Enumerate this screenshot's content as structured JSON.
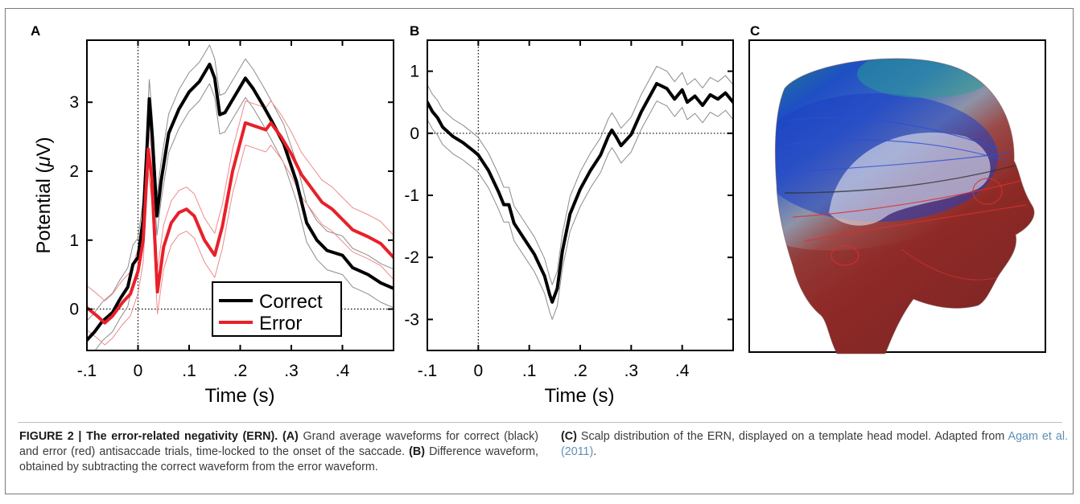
{
  "chart_data": [
    {
      "type": "line",
      "panel_label": "A",
      "xlabel": "Time (s)",
      "ylabel": "Potential (μV)",
      "xlim": [
        -0.1,
        0.5
      ],
      "ylim": [
        -0.6,
        3.9
      ],
      "xticks": [
        -0.1,
        0,
        0.1,
        0.2,
        0.3,
        0.4
      ],
      "xtick_labels": [
        "-.1",
        "0",
        ".1",
        ".2",
        ".3",
        ".4"
      ],
      "yticks": [
        0,
        1,
        2,
        3
      ],
      "ytick_labels": [
        "0",
        "1",
        "2",
        "3"
      ],
      "zero_lines": true,
      "legend": "bottom-center",
      "series": [
        {
          "name": "Correct",
          "color": "#000000",
          "band_color": "#8c8c8c",
          "band_width": 0.28,
          "points": [
            [
              -0.1,
              -0.45
            ],
            [
              -0.085,
              -0.33
            ],
            [
              -0.07,
              -0.18
            ],
            [
              -0.05,
              -0.05
            ],
            [
              -0.035,
              0.15
            ],
            [
              -0.02,
              0.32
            ],
            [
              -0.01,
              0.65
            ],
            [
              0.0,
              0.75
            ],
            [
              0.01,
              1.3
            ],
            [
              0.018,
              2.4
            ],
            [
              0.022,
              3.05
            ],
            [
              0.028,
              2.5
            ],
            [
              0.037,
              1.35
            ],
            [
              0.045,
              1.85
            ],
            [
              0.06,
              2.55
            ],
            [
              0.08,
              2.9
            ],
            [
              0.1,
              3.15
            ],
            [
              0.12,
              3.3
            ],
            [
              0.14,
              3.55
            ],
            [
              0.15,
              3.35
            ],
            [
              0.16,
              2.82
            ],
            [
              0.17,
              2.85
            ],
            [
              0.19,
              3.1
            ],
            [
              0.21,
              3.35
            ],
            [
              0.225,
              3.2
            ],
            [
              0.245,
              2.95
            ],
            [
              0.26,
              2.75
            ],
            [
              0.285,
              2.4
            ],
            [
              0.31,
              1.85
            ],
            [
              0.33,
              1.25
            ],
            [
              0.35,
              1.0
            ],
            [
              0.37,
              0.85
            ],
            [
              0.4,
              0.78
            ],
            [
              0.42,
              0.6
            ],
            [
              0.45,
              0.5
            ],
            [
              0.475,
              0.38
            ],
            [
              0.5,
              0.3
            ]
          ]
        },
        {
          "name": "Error",
          "color": "#e8202a",
          "band_color": "#ef8a8a",
          "band_width": 0.32,
          "points": [
            [
              -0.1,
              0.02
            ],
            [
              -0.08,
              -0.1
            ],
            [
              -0.065,
              -0.2
            ],
            [
              -0.05,
              -0.1
            ],
            [
              -0.03,
              0.1
            ],
            [
              -0.015,
              0.22
            ],
            [
              0.0,
              0.55
            ],
            [
              0.01,
              1.0
            ],
            [
              0.02,
              2.32
            ],
            [
              0.027,
              1.9
            ],
            [
              0.038,
              0.25
            ],
            [
              0.05,
              0.9
            ],
            [
              0.065,
              1.25
            ],
            [
              0.08,
              1.4
            ],
            [
              0.095,
              1.45
            ],
            [
              0.11,
              1.35
            ],
            [
              0.13,
              1.0
            ],
            [
              0.15,
              0.78
            ],
            [
              0.165,
              1.2
            ],
            [
              0.185,
              2.0
            ],
            [
              0.21,
              2.7
            ],
            [
              0.23,
              2.65
            ],
            [
              0.25,
              2.6
            ],
            [
              0.26,
              2.7
            ],
            [
              0.28,
              2.5
            ],
            [
              0.3,
              2.25
            ],
            [
              0.32,
              1.95
            ],
            [
              0.34,
              1.75
            ],
            [
              0.36,
              1.55
            ],
            [
              0.38,
              1.45
            ],
            [
              0.4,
              1.3
            ],
            [
              0.42,
              1.15
            ],
            [
              0.45,
              1.05
            ],
            [
              0.475,
              0.95
            ],
            [
              0.5,
              0.75
            ]
          ]
        }
      ]
    },
    {
      "type": "line",
      "panel_label": "B",
      "xlabel": "Time (s)",
      "ylabel": "",
      "xlim": [
        -0.1,
        0.5
      ],
      "ylim": [
        -3.5,
        1.5
      ],
      "xticks": [
        -0.1,
        0,
        0.1,
        0.2,
        0.3,
        0.4
      ],
      "xtick_labels": [
        "-.1",
        "0",
        ".1",
        ".2",
        ".3",
        ".4"
      ],
      "yticks": [
        -3,
        -2,
        -1,
        0,
        1
      ],
      "ytick_labels": [
        "-3",
        "-2",
        "-1",
        "0",
        "1"
      ],
      "zero_lines": true,
      "series": [
        {
          "color": "#000000",
          "band_color": "#8c8c8c",
          "band_width": 0.28,
          "points": [
            [
              -0.1,
              0.5
            ],
            [
              -0.09,
              0.35
            ],
            [
              -0.08,
              0.25
            ],
            [
              -0.07,
              0.1
            ],
            [
              -0.05,
              -0.05
            ],
            [
              -0.03,
              -0.15
            ],
            [
              -0.01,
              -0.28
            ],
            [
              0.0,
              -0.35
            ],
            [
              0.02,
              -0.6
            ],
            [
              0.04,
              -0.95
            ],
            [
              0.05,
              -1.15
            ],
            [
              0.06,
              -1.15
            ],
            [
              0.07,
              -1.45
            ],
            [
              0.09,
              -1.7
            ],
            [
              0.11,
              -1.95
            ],
            [
              0.13,
              -2.3
            ],
            [
              0.14,
              -2.6
            ],
            [
              0.145,
              -2.72
            ],
            [
              0.155,
              -2.5
            ],
            [
              0.165,
              -1.9
            ],
            [
              0.18,
              -1.3
            ],
            [
              0.2,
              -0.9
            ],
            [
              0.22,
              -0.6
            ],
            [
              0.24,
              -0.35
            ],
            [
              0.255,
              -0.05
            ],
            [
              0.262,
              0.05
            ],
            [
              0.27,
              -0.05
            ],
            [
              0.28,
              -0.2
            ],
            [
              0.3,
              -0.02
            ],
            [
              0.32,
              0.35
            ],
            [
              0.35,
              0.8
            ],
            [
              0.37,
              0.72
            ],
            [
              0.385,
              0.55
            ],
            [
              0.4,
              0.7
            ],
            [
              0.41,
              0.5
            ],
            [
              0.425,
              0.6
            ],
            [
              0.44,
              0.45
            ],
            [
              0.455,
              0.62
            ],
            [
              0.47,
              0.55
            ],
            [
              0.485,
              0.65
            ],
            [
              0.5,
              0.5
            ]
          ]
        }
      ]
    }
  ],
  "panels": {
    "a_label": "A",
    "b_label": "B",
    "c_label": "C"
  },
  "legend": {
    "correct": "Correct",
    "error": "Error"
  },
  "caption": {
    "label": "FIGURE 2 | The error-related negativity (ERN).",
    "a": "(A)",
    "a_text": "Grand average waveforms for correct (black) and error (red) antisaccade trials, time-locked to the onset of the saccade.",
    "b": "(B)",
    "b_text": "Difference waveform, obtained by subtracting the correct waveform from the error waveform.",
    "c": "(C)",
    "c_text": "Scalp distribution of the ERN, displayed on a template head model. Adapted from",
    "cite": "Agam et al. (2011)",
    "end": "."
  }
}
